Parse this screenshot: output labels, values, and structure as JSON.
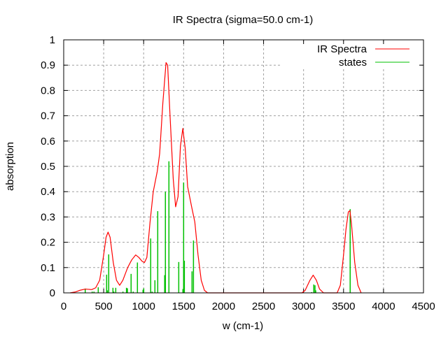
{
  "chart_data": {
    "type": "line",
    "title": "IR Spectra (sigma=50.0 cm-1)",
    "xlabel": "w (cm-1)",
    "ylabel": "absorption",
    "xlim": [
      0,
      4500
    ],
    "ylim": [
      0,
      1
    ],
    "xticks": [
      0,
      500,
      1000,
      1500,
      2000,
      2500,
      3000,
      3500,
      4000,
      4500
    ],
    "yticks": [
      0,
      0.1,
      0.2,
      0.3,
      0.4,
      0.5,
      0.6,
      0.7,
      0.8,
      0.9,
      1
    ],
    "xtick_labels": [
      "0",
      "500",
      "1000",
      "1500",
      "2000",
      "2500",
      "3000",
      "3500",
      "4000",
      "4500"
    ],
    "ytick_labels": [
      "0",
      "0.1",
      "0.2",
      "0.3",
      "0.4",
      "0.5",
      "0.6",
      "0.7",
      "0.8",
      "0.9",
      "1"
    ],
    "grid": true,
    "legend_position": "top-right",
    "series": [
      {
        "name": "IR Spectra",
        "style": "line",
        "color": "#ff0000",
        "x": [
          80,
          150,
          200,
          270,
          350,
          400,
          450,
          500,
          530,
          555,
          580,
          620,
          660,
          700,
          740,
          800,
          850,
          900,
          940,
          980,
          1010,
          1040,
          1080,
          1120,
          1170,
          1200,
          1240,
          1280,
          1300,
          1330,
          1370,
          1400,
          1430,
          1460,
          1490,
          1520,
          1550,
          1600,
          1640,
          1680,
          1720,
          1760,
          1800,
          2980,
          3020,
          3080,
          3120,
          3160,
          3200,
          3250,
          3420,
          3460,
          3500,
          3530,
          3560,
          3580,
          3600,
          3640,
          3680,
          3720
        ],
        "y": [
          0,
          0.004,
          0.01,
          0.015,
          0.013,
          0.02,
          0.05,
          0.15,
          0.22,
          0.24,
          0.22,
          0.12,
          0.05,
          0.03,
          0.05,
          0.1,
          0.13,
          0.15,
          0.14,
          0.125,
          0.12,
          0.14,
          0.28,
          0.4,
          0.48,
          0.55,
          0.75,
          0.91,
          0.9,
          0.7,
          0.45,
          0.34,
          0.38,
          0.58,
          0.65,
          0.57,
          0.42,
          0.34,
          0.28,
          0.15,
          0.05,
          0.01,
          0,
          0,
          0.01,
          0.05,
          0.07,
          0.05,
          0.015,
          0,
          0,
          0.03,
          0.15,
          0.25,
          0.32,
          0.325,
          0.27,
          0.12,
          0.03,
          0
        ]
      },
      {
        "name": "states",
        "style": "impulses",
        "color": "#00c000",
        "x": [
          269,
          356,
          379,
          432,
          537,
          546,
          563,
          616,
          627,
          651,
          741,
          785,
          797,
          843,
          869,
          922,
          992,
          1001,
          1088,
          1106,
          1141,
          1176,
          1263,
          1272,
          1316,
          1439,
          1491,
          1500,
          1509,
          1605,
          1623,
          3102,
          3128,
          3143,
          3152,
          3583
        ],
        "y": [
          0.017,
          0.005,
          0.005,
          0.022,
          0.072,
          0.01,
          0.152,
          0.02,
          0.005,
          0.02,
          0.005,
          0.02,
          0.018,
          0.075,
          0.005,
          0.12,
          0.012,
          0.018,
          0.215,
          0.005,
          0.05,
          0.323,
          0.07,
          0.4,
          0.52,
          0.122,
          0.015,
          0.436,
          0.127,
          0.085,
          0.207,
          0.003,
          0.033,
          0.03,
          0.01,
          0.331
        ]
      }
    ]
  }
}
